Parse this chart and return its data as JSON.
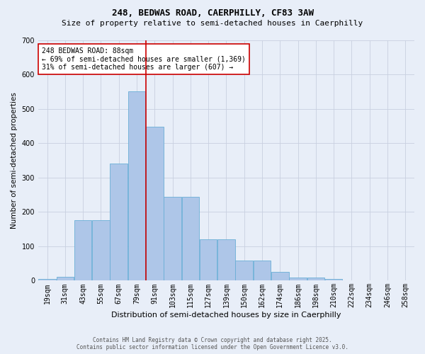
{
  "title1": "248, BEDWAS ROAD, CAERPHILLY, CF83 3AW",
  "title2": "Size of property relative to semi-detached houses in Caerphilly",
  "xlabel": "Distribution of semi-detached houses by size in Caerphilly",
  "ylabel": "Number of semi-detached properties",
  "bins": [
    "19sqm",
    "31sqm",
    "43sqm",
    "55sqm",
    "67sqm",
    "79sqm",
    "91sqm",
    "103sqm",
    "115sqm",
    "127sqm",
    "139sqm",
    "150sqm",
    "162sqm",
    "174sqm",
    "186sqm",
    "198sqm",
    "210sqm",
    "222sqm",
    "234sqm",
    "246sqm",
    "258sqm"
  ],
  "values": [
    5,
    12,
    175,
    175,
    340,
    550,
    448,
    243,
    243,
    120,
    120,
    58,
    58,
    25,
    10,
    10,
    5,
    0,
    0,
    0,
    0
  ],
  "bar_color": "#aec6e8",
  "bar_edge_color": "#6aaed6",
  "vline_x": 6.0,
  "vline_color": "#cc0000",
  "annotation_text": "248 BEDWAS ROAD: 88sqm\n← 69% of semi-detached houses are smaller (1,369)\n31% of semi-detached houses are larger (607) →",
  "annotation_box_facecolor": "#ffffff",
  "annotation_box_edgecolor": "#cc0000",
  "footer1": "Contains HM Land Registry data © Crown copyright and database right 2025.",
  "footer2": "Contains public sector information licensed under the Open Government Licence v3.0.",
  "bg_color": "#e8eef8",
  "ylim": [
    0,
    700
  ],
  "yticks": [
    0,
    100,
    200,
    300,
    400,
    500,
    600,
    700
  ],
  "grid_color": "#c8d0e0",
  "title1_fontsize": 9,
  "title2_fontsize": 8,
  "xlabel_fontsize": 8,
  "ylabel_fontsize": 7.5,
  "tick_fontsize": 7,
  "annot_fontsize": 7,
  "footer_fontsize": 5.5
}
